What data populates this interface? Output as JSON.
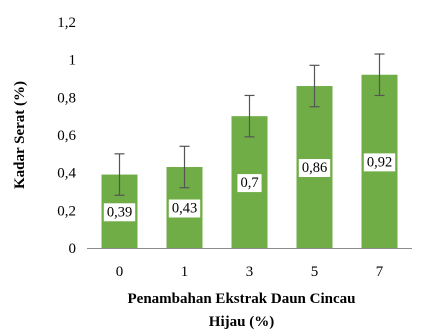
{
  "chart_data": {
    "type": "bar",
    "categories": [
      "0",
      "1",
      "3",
      "5",
      "7"
    ],
    "values": [
      0.39,
      0.43,
      0.7,
      0.86,
      0.92
    ],
    "data_labels": [
      "0,39",
      "0,43",
      "0,7",
      "0,86",
      "0,92"
    ],
    "error_bars": [
      0.11,
      0.11,
      0.11,
      0.11,
      0.11
    ],
    "xlabel_lines": [
      "Penambahan Ekstrak Daun Cincau",
      "Hijau (%)"
    ],
    "ylabel": "Kadar Serat (%)",
    "ylim": [
      0,
      1.2
    ],
    "y_ticks": [
      0,
      0.2,
      0.4,
      0.6,
      0.8,
      1,
      1.2
    ],
    "y_tick_labels": [
      "0",
      "0,2",
      "0,4",
      "0,6",
      "0,8",
      "1",
      "1,2"
    ],
    "grid": false,
    "legend": "none",
    "colors": {
      "bar": "#70ad47",
      "axis": "#8c8c8c",
      "error_bar": "#555555",
      "label_background": "#ffffff"
    }
  }
}
